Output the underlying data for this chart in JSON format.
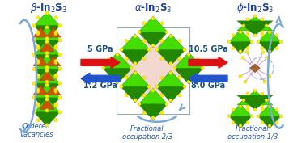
{
  "title_left": "$\\beta$-In$_2$S$_3$",
  "title_center": "$\\alpha$-In$_2$S$_3$",
  "title_right": "$\\phi$-In$_2$S$_3$",
  "pressure_5": "5 GPa",
  "pressure_12": "1.2 GPa",
  "pressure_105": "10.5 GPa",
  "pressure_80": "8.0 GPa",
  "label_left": "Ordered\nvacancies",
  "label_center": "Fractional\noccupation 2/3",
  "label_right": "Fractional\noccupation 1/3",
  "bg_color": "#ffffff",
  "title_color": "#1a3fa0",
  "arrow_red": "#dd1111",
  "arrow_blue_straight": "#2255cc",
  "arrow_blue_curve": "#7aa8d8",
  "label_color": "#2255bb",
  "pressure_color": "#1a5080",
  "green_light": "#44dd00",
  "green_dark": "#228800",
  "orange": "#cc5500",
  "yellow": "#ffee00",
  "pink": "#e8b8a8",
  "gray_box": "#bbccdd"
}
